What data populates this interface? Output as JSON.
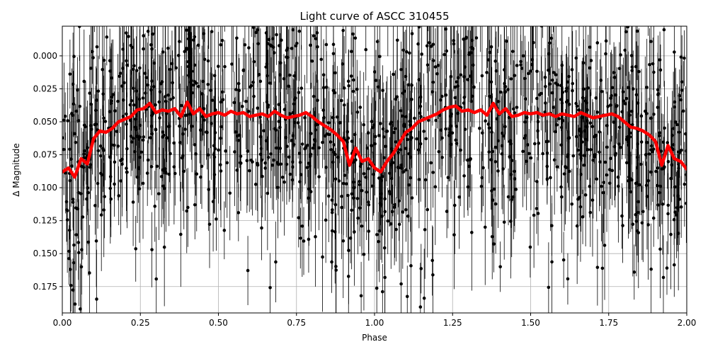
{
  "chart_data": {
    "type": "scatter",
    "title": "Light curve of ASCC 310455",
    "xlabel": "Phase",
    "ylabel": "Δ Magnitude",
    "xlim": [
      0.0,
      2.0
    ],
    "ylim": [
      0.195,
      -0.0225
    ],
    "y_inverted": true,
    "grid": true,
    "xticks": [
      0.0,
      0.25,
      0.5,
      0.75,
      1.0,
      1.25,
      1.5,
      1.75,
      2.0
    ],
    "xtick_labels": [
      "0.00",
      "0.25",
      "0.50",
      "0.75",
      "1.00",
      "1.25",
      "1.50",
      "1.75",
      "2.00"
    ],
    "yticks": [
      0.0,
      0.025,
      0.05,
      0.075,
      0.1,
      0.125,
      0.15,
      0.175
    ],
    "ytick_labels": [
      "0.000",
      "0.025",
      "0.050",
      "0.075",
      "0.100",
      "0.125",
      "0.150",
      "0.175"
    ],
    "series": [
      {
        "role": "observations",
        "style": "black points with error bars",
        "color": "#000000",
        "point_count_approx": 1400,
        "mean_magnitude": 0.06,
        "scatter_sigma": 0.045,
        "typical_error": 0.03
      },
      {
        "role": "binned model curve",
        "style": "thick line",
        "color": "#ff0000",
        "x": [
          0.0,
          0.02,
          0.04,
          0.06,
          0.08,
          0.1,
          0.12,
          0.14,
          0.16,
          0.18,
          0.2,
          0.22,
          0.24,
          0.26,
          0.28,
          0.3,
          0.32,
          0.34,
          0.36,
          0.38,
          0.4,
          0.42,
          0.44,
          0.46,
          0.48,
          0.5,
          0.52,
          0.54,
          0.56,
          0.58,
          0.6,
          0.62,
          0.64,
          0.66,
          0.68,
          0.7,
          0.72,
          0.74,
          0.76,
          0.78,
          0.8,
          0.82,
          0.84,
          0.86,
          0.88,
          0.9,
          0.92,
          0.94,
          0.96,
          0.98,
          1.0,
          1.02,
          1.04,
          1.06,
          1.08,
          1.1,
          1.12,
          1.14,
          1.16,
          1.18,
          1.2,
          1.22,
          1.24,
          1.26,
          1.28,
          1.3,
          1.32,
          1.34,
          1.36,
          1.38,
          1.4,
          1.42,
          1.44,
          1.46,
          1.48,
          1.5,
          1.52,
          1.54,
          1.56,
          1.58,
          1.6,
          1.62,
          1.64,
          1.66,
          1.68,
          1.7,
          1.72,
          1.74,
          1.76,
          1.78,
          1.8,
          1.82,
          1.84,
          1.86,
          1.88,
          1.9,
          1.92,
          1.94,
          1.96,
          1.98,
          2.0
        ],
        "y": [
          0.088,
          0.085,
          0.092,
          0.078,
          0.082,
          0.063,
          0.057,
          0.058,
          0.055,
          0.05,
          0.048,
          0.046,
          0.041,
          0.04,
          0.036,
          0.043,
          0.041,
          0.042,
          0.04,
          0.046,
          0.035,
          0.044,
          0.04,
          0.046,
          0.044,
          0.043,
          0.045,
          0.042,
          0.044,
          0.043,
          0.046,
          0.045,
          0.044,
          0.046,
          0.042,
          0.045,
          0.047,
          0.046,
          0.045,
          0.043,
          0.046,
          0.05,
          0.053,
          0.056,
          0.06,
          0.065,
          0.083,
          0.07,
          0.08,
          0.078,
          0.085,
          0.088,
          0.08,
          0.074,
          0.066,
          0.058,
          0.055,
          0.05,
          0.048,
          0.046,
          0.044,
          0.041,
          0.039,
          0.038,
          0.042,
          0.041,
          0.043,
          0.041,
          0.045,
          0.036,
          0.044,
          0.04,
          0.046,
          0.045,
          0.043,
          0.044,
          0.043,
          0.045,
          0.044,
          0.046,
          0.044,
          0.045,
          0.046,
          0.043,
          0.045,
          0.047,
          0.046,
          0.045,
          0.044,
          0.046,
          0.05,
          0.054,
          0.055,
          0.057,
          0.06,
          0.065,
          0.083,
          0.068,
          0.078,
          0.08,
          0.086
        ]
      }
    ]
  }
}
